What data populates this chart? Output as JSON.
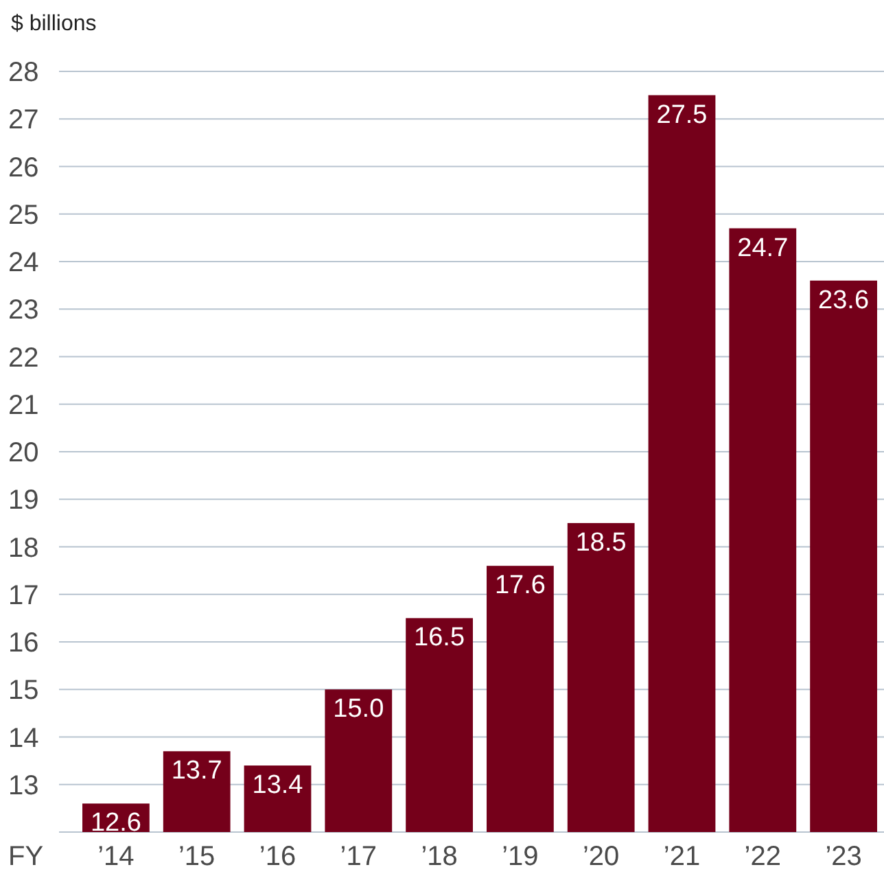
{
  "chart_data": {
    "type": "bar",
    "ylabel": "$ billions",
    "xlabel": "FY",
    "categories": [
      "’14",
      "’15",
      "’16",
      "’17",
      "’18",
      "’19",
      "’20",
      "’21",
      "’22",
      "’23"
    ],
    "values": [
      12.6,
      13.7,
      13.4,
      15.0,
      16.5,
      17.6,
      18.5,
      27.5,
      24.7,
      23.6
    ],
    "value_labels": [
      "12.6",
      "13.7",
      "13.4",
      "15.0",
      "16.5",
      "17.6",
      "18.5",
      "27.5",
      "24.7",
      "23.6"
    ],
    "color": "#75001a",
    "ylim": [
      12,
      28
    ],
    "yticks": [
      13,
      14,
      15,
      16,
      17,
      18,
      19,
      20,
      21,
      22,
      23,
      24,
      25,
      26,
      27,
      28
    ],
    "grid": "y"
  }
}
